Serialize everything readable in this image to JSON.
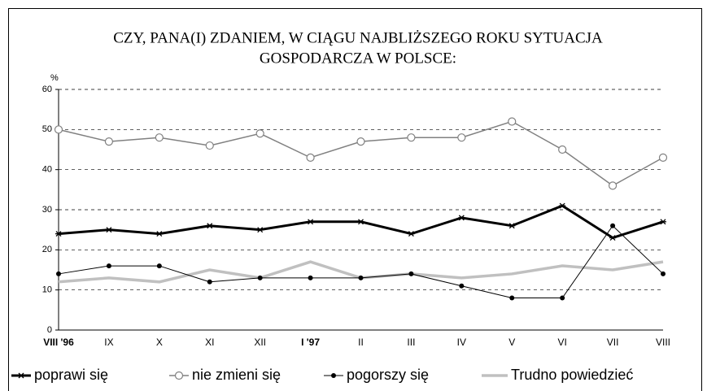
{
  "chart_data": {
    "type": "line",
    "title": [
      "CZY, PANA(I) ZDANIEM, W CIĄGU NAJBLIŻSZEGO ROKU SYTUACJA",
      "GOSPODARCZA W POLSCE:"
    ],
    "y_label": "%",
    "categories": [
      "VIII '96",
      "IX",
      "X",
      "XI",
      "XII",
      "I '97",
      "II",
      "III",
      "IV",
      "V",
      "VI",
      "VII",
      "VIII"
    ],
    "bold_categories": [
      0,
      5
    ],
    "series": [
      {
        "name": "poprawi się",
        "color": "#000000",
        "width": 3,
        "marker": "star",
        "values": [
          24,
          25,
          24,
          26,
          25,
          27,
          27,
          24,
          28,
          26,
          31,
          23,
          27
        ]
      },
      {
        "name": "nie zmieni się",
        "color": "#808080",
        "width": 1.5,
        "marker": "circle-open",
        "values": [
          50,
          47,
          48,
          46,
          49,
          43,
          47,
          48,
          48,
          52,
          45,
          36,
          43
        ]
      },
      {
        "name": "pogorszy się",
        "color": "#000000",
        "width": 1,
        "marker": "dot",
        "values": [
          14,
          16,
          16,
          12,
          13,
          13,
          13,
          14,
          11,
          8,
          8,
          26,
          14
        ]
      },
      {
        "name": "Trudno powiedzieć",
        "color": "#c0c0c0",
        "width": 3.5,
        "marker": "none",
        "values": [
          12,
          13,
          12,
          15,
          13,
          17,
          13,
          14,
          13,
          14,
          16,
          15,
          17
        ]
      }
    ],
    "ylim": [
      0,
      60
    ],
    "yticks": [
      0,
      10,
      20,
      30,
      40,
      50,
      60
    ],
    "grid": true
  }
}
